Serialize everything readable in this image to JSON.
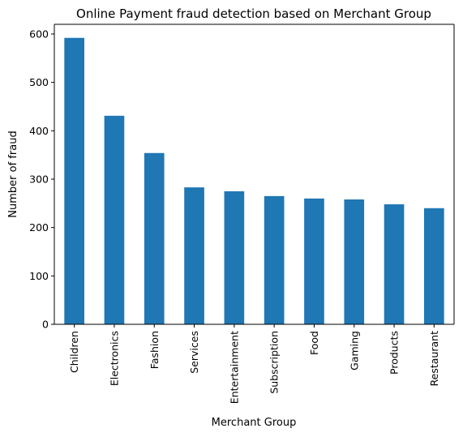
{
  "chart_data": {
    "type": "bar",
    "title": "Online Payment fraud detection based on Merchant Group",
    "xlabel": "Merchant Group",
    "ylabel": "Number of fraud",
    "categories": [
      "Children",
      "Electronics",
      "Fashion",
      "Services",
      "Entertainment",
      "Subscription",
      "Food",
      "Gaming",
      "Products",
      "Restaurant"
    ],
    "values": [
      592,
      431,
      354,
      283,
      275,
      265,
      260,
      258,
      248,
      240
    ],
    "ylim": [
      0,
      620
    ],
    "yticks": [
      0,
      100,
      200,
      300,
      400,
      500,
      600
    ],
    "bar_color": "#1f77b4",
    "grid": false,
    "legend": false
  }
}
